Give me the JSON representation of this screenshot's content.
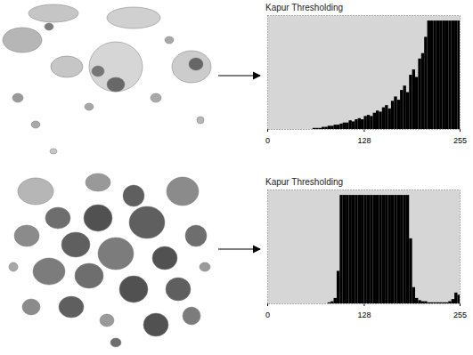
{
  "chart_data": [
    {
      "type": "histogram",
      "title": "Kapur Thresholding",
      "color": "#000000",
      "bins": [
        0,
        4,
        8,
        12,
        16,
        20,
        24,
        28,
        32,
        36,
        40,
        44,
        48,
        52,
        56,
        60,
        64,
        68,
        72,
        76,
        80,
        84,
        88,
        92,
        96,
        100,
        104,
        108,
        112,
        116,
        120,
        124,
        128,
        132,
        136,
        140,
        144,
        148,
        152,
        156,
        160,
        164,
        168,
        172,
        176,
        180,
        184,
        188,
        192,
        196,
        200,
        204,
        208,
        212,
        216,
        220,
        224,
        228,
        232,
        236,
        240,
        244,
        248,
        252,
        255
      ],
      "values": [
        0,
        0,
        0,
        0,
        0,
        0,
        0,
        0,
        0,
        0,
        0,
        0,
        0,
        0,
        0,
        1,
        1,
        1,
        2,
        2,
        3,
        3,
        4,
        4,
        5,
        6,
        6,
        8,
        7,
        9,
        10,
        9,
        12,
        13,
        12,
        15,
        17,
        16,
        20,
        22,
        19,
        26,
        30,
        27,
        36,
        40,
        34,
        50,
        55,
        48,
        65,
        70,
        85,
        100,
        100,
        100,
        100,
        100,
        100,
        100,
        100,
        100,
        100,
        100
      ],
      "xlim": [
        0,
        255
      ],
      "xticks": [
        0,
        128,
        255
      ],
      "ylim": [
        0,
        105
      ],
      "tick_labels": "x"
    },
    {
      "type": "histogram",
      "title": "Kapur Thresholding",
      "color": "#000000",
      "bins": [
        0,
        4,
        8,
        12,
        16,
        20,
        24,
        28,
        32,
        36,
        40,
        44,
        48,
        52,
        56,
        60,
        64,
        68,
        72,
        76,
        80,
        84,
        88,
        92,
        96,
        100,
        104,
        108,
        112,
        116,
        120,
        124,
        128,
        132,
        136,
        140,
        144,
        148,
        152,
        156,
        160,
        164,
        168,
        172,
        176,
        180,
        184,
        188,
        192,
        196,
        200,
        204,
        208,
        212,
        216,
        220,
        224,
        228,
        232,
        236,
        240,
        244,
        248,
        252,
        255
      ],
      "values": [
        0,
        0,
        0,
        0,
        0,
        0,
        0,
        0,
        0,
        0,
        0,
        0,
        0,
        0,
        0,
        0,
        0,
        0,
        0,
        0,
        1,
        2,
        5,
        30,
        100,
        100,
        100,
        100,
        100,
        100,
        100,
        100,
        100,
        100,
        100,
        100,
        100,
        100,
        100,
        100,
        100,
        100,
        100,
        100,
        100,
        100,
        100,
        60,
        15,
        5,
        3,
        2,
        2,
        1,
        1,
        1,
        1,
        1,
        1,
        1,
        2,
        4,
        10,
        8
      ],
      "xlim": [
        0,
        255
      ],
      "xticks": [
        0,
        128,
        255
      ],
      "ylim": [
        0,
        105
      ],
      "tick_labels": "x"
    }
  ]
}
